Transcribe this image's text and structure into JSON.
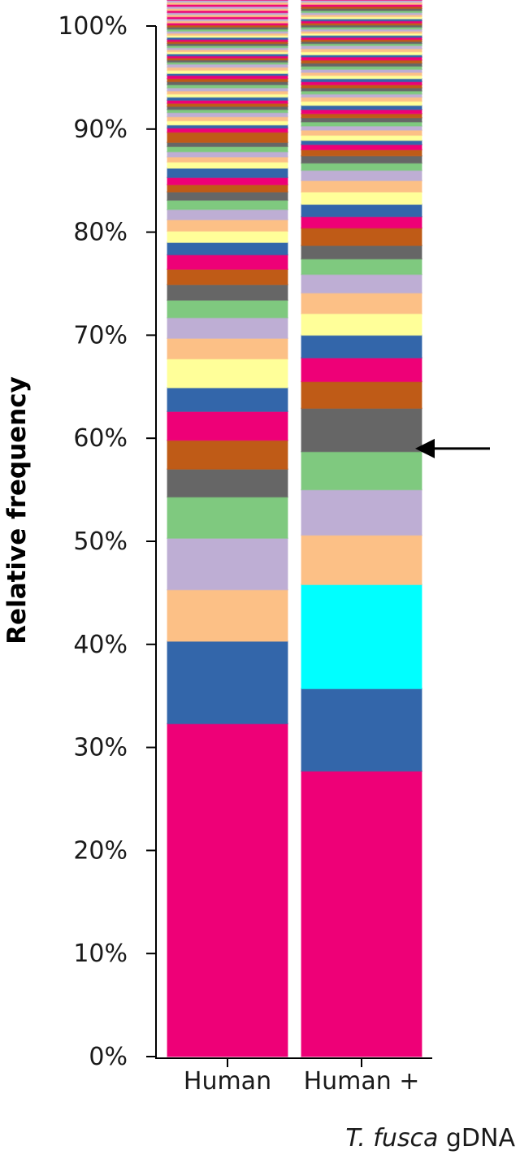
{
  "chart_data": {
    "type": "bar",
    "stacked": true,
    "ylabel": "Relative frequency",
    "ylim": [
      0,
      100
    ],
    "yticks": [
      "0%",
      "10%",
      "20%",
      "30%",
      "40%",
      "50%",
      "60%",
      "70%",
      "80%",
      "90%",
      "100%"
    ],
    "categories": [
      "Human",
      "Human +"
    ],
    "category_caption": {
      "italic": "T. fusca",
      "plain": " gDNA"
    },
    "annotation": {
      "type": "arrow",
      "points_to": "Human +",
      "at_value": 59
    },
    "colors": {
      "magenta": "#ee0077",
      "blue": "#3366aa",
      "cyan": "#00ffff",
      "peach": "#fcc086",
      "lavender": "#beaed4",
      "green": "#7fc97f",
      "gray": "#666666",
      "rust": "#bf5b17",
      "yellow": "#ffff99"
    },
    "stacks": [
      {
        "category": "Human",
        "segments": [
          {
            "color": "magenta",
            "value": 32.3
          },
          {
            "color": "blue",
            "value": 8.0
          },
          {
            "color": "peach",
            "value": 5.0
          },
          {
            "color": "lavender",
            "value": 5.0
          },
          {
            "color": "green",
            "value": 4.0
          },
          {
            "color": "gray",
            "value": 2.7
          },
          {
            "color": "rust",
            "value": 2.8
          },
          {
            "color": "magenta",
            "value": 2.8
          },
          {
            "color": "blue",
            "value": 2.3
          },
          {
            "color": "yellow",
            "value": 2.8
          },
          {
            "color": "peach",
            "value": 2.0
          },
          {
            "color": "lavender",
            "value": 2.0
          },
          {
            "color": "green",
            "value": 1.7
          },
          {
            "color": "gray",
            "value": 1.5
          },
          {
            "color": "rust",
            "value": 1.5
          },
          {
            "color": "magenta",
            "value": 1.4
          },
          {
            "color": "blue",
            "value": 1.2
          },
          {
            "color": "yellow",
            "value": 1.1
          },
          {
            "color": "peach",
            "value": 1.1
          },
          {
            "color": "lavender",
            "value": 1.0
          },
          {
            "color": "green",
            "value": 0.9
          },
          {
            "color": "gray",
            "value": 0.8
          },
          {
            "color": "rust",
            "value": 0.7
          },
          {
            "color": "magenta",
            "value": 0.7
          },
          {
            "color": "blue",
            "value": 0.9
          },
          {
            "color": "yellow",
            "value": 0.6
          },
          {
            "color": "peach",
            "value": 0.5
          },
          {
            "color": "lavender",
            "value": 0.5
          },
          {
            "color": "green",
            "value": 0.5
          },
          {
            "color": "gray",
            "value": 0.4
          },
          {
            "color": "rust",
            "value": 1.0
          },
          {
            "color": "magenta",
            "value": 0.4
          },
          {
            "color": "blue",
            "value": 0.3
          },
          {
            "color": "yellow",
            "value": 0.4
          },
          {
            "color": "peach",
            "value": 0.4
          },
          {
            "color": "lavender",
            "value": 0.4
          },
          {
            "color": "green",
            "value": 0.3
          },
          {
            "color": "gray",
            "value": 0.3
          },
          {
            "color": "rust",
            "value": 0.3
          },
          {
            "color": "magenta",
            "value": 0.3
          },
          {
            "color": "blue",
            "value": 0.3
          },
          {
            "color": "yellow",
            "value": 0.3
          },
          {
            "color": "peach",
            "value": 0.3
          },
          {
            "color": "lavender",
            "value": 0.3
          },
          {
            "color": "green",
            "value": 0.3
          },
          {
            "color": "gray",
            "value": 0.3
          },
          {
            "color": "rust",
            "value": 0.3
          },
          {
            "color": "magenta",
            "value": 0.3
          },
          {
            "color": "blue",
            "value": 0.2
          },
          {
            "color": "yellow",
            "value": 0.3
          },
          {
            "color": "peach",
            "value": 0.3
          },
          {
            "color": "lavender",
            "value": 0.3
          },
          {
            "color": "green",
            "value": 0.2
          },
          {
            "color": "gray",
            "value": 0.2
          },
          {
            "color": "rust",
            "value": 0.2
          },
          {
            "color": "magenta",
            "value": 0.2
          },
          {
            "color": "blue",
            "value": 0.2
          },
          {
            "color": "yellow",
            "value": 0.2
          },
          {
            "color": "peach",
            "value": 0.2
          },
          {
            "color": "lavender",
            "value": 0.2
          },
          {
            "color": "green",
            "value": 0.2
          },
          {
            "color": "gray",
            "value": 0.2
          },
          {
            "color": "rust",
            "value": 0.2
          },
          {
            "color": "magenta",
            "value": 0.2
          },
          {
            "color": "blue",
            "value": 0.2
          },
          {
            "color": "yellow",
            "value": 0.2
          },
          {
            "color": "peach",
            "value": 0.2
          },
          {
            "color": "lavender",
            "value": 0.2
          },
          {
            "color": "green",
            "value": 0.2
          },
          {
            "color": "gray",
            "value": 0.2
          },
          {
            "color": "rust",
            "value": 0.2
          },
          {
            "color": "magenta",
            "value": 0.2
          },
          {
            "color": "peach",
            "value": 0.2
          },
          {
            "color": "lavender",
            "value": 0.2
          },
          {
            "color": "magenta",
            "value": 0.2
          },
          {
            "color": "peach",
            "value": 0.2
          },
          {
            "color": "lavender",
            "value": 0.2
          },
          {
            "color": "magenta",
            "value": 0.2
          },
          {
            "color": "peach",
            "value": 0.2
          },
          {
            "color": "lavender",
            "value": 0.2
          },
          {
            "color": "magenta",
            "value": 0.2
          },
          {
            "color": "peach",
            "value": 0.2
          },
          {
            "color": "lavender",
            "value": 0.2
          },
          {
            "color": "magenta",
            "value": 0.2
          },
          {
            "color": "peach",
            "value": 0.2
          },
          {
            "color": "lavender",
            "value": 0.2
          },
          {
            "color": "magenta",
            "value": 0.2
          },
          {
            "color": "peach",
            "value": 0.2
          },
          {
            "color": "lavender",
            "value": 0.2
          },
          {
            "color": "magenta",
            "value": 0.2
          },
          {
            "color": "peach",
            "value": 0.2
          },
          {
            "color": "lavender",
            "value": 0.2
          },
          {
            "color": "peach",
            "value": 0.2
          }
        ]
      },
      {
        "category": "Human +",
        "segments": [
          {
            "color": "magenta",
            "value": 27.7
          },
          {
            "color": "blue",
            "value": 8.0
          },
          {
            "color": "cyan",
            "value": 10.1
          },
          {
            "color": "peach",
            "value": 4.8
          },
          {
            "color": "lavender",
            "value": 4.4
          },
          {
            "color": "green",
            "value": 3.7
          },
          {
            "color": "gray",
            "value": 4.2
          },
          {
            "color": "rust",
            "value": 2.6
          },
          {
            "color": "magenta",
            "value": 2.3
          },
          {
            "color": "blue",
            "value": 2.2
          },
          {
            "color": "yellow",
            "value": 2.1
          },
          {
            "color": "peach",
            "value": 2.0
          },
          {
            "color": "lavender",
            "value": 1.8
          },
          {
            "color": "green",
            "value": 1.5
          },
          {
            "color": "gray",
            "value": 1.3
          },
          {
            "color": "rust",
            "value": 1.7
          },
          {
            "color": "magenta",
            "value": 1.1
          },
          {
            "color": "blue",
            "value": 1.2
          },
          {
            "color": "yellow",
            "value": 1.2
          },
          {
            "color": "peach",
            "value": 1.1
          },
          {
            "color": "lavender",
            "value": 1.0
          },
          {
            "color": "green",
            "value": 0.7
          },
          {
            "color": "gray",
            "value": 0.7
          },
          {
            "color": "rust",
            "value": 0.6
          },
          {
            "color": "magenta",
            "value": 0.5
          },
          {
            "color": "blue",
            "value": 0.4
          },
          {
            "color": "yellow",
            "value": 0.5
          },
          {
            "color": "peach",
            "value": 0.5
          },
          {
            "color": "lavender",
            "value": 0.4
          },
          {
            "color": "green",
            "value": 0.4
          },
          {
            "color": "gray",
            "value": 0.4
          },
          {
            "color": "rust",
            "value": 0.4
          },
          {
            "color": "magenta",
            "value": 0.4
          },
          {
            "color": "blue",
            "value": 0.4
          },
          {
            "color": "yellow",
            "value": 0.4
          },
          {
            "color": "peach",
            "value": 0.4
          },
          {
            "color": "lavender",
            "value": 0.3
          },
          {
            "color": "green",
            "value": 0.3
          },
          {
            "color": "gray",
            "value": 0.3
          },
          {
            "color": "rust",
            "value": 0.3
          },
          {
            "color": "magenta",
            "value": 0.3
          },
          {
            "color": "blue",
            "value": 0.3
          },
          {
            "color": "yellow",
            "value": 0.3
          },
          {
            "color": "peach",
            "value": 0.3
          },
          {
            "color": "lavender",
            "value": 0.3
          },
          {
            "color": "green",
            "value": 0.3
          },
          {
            "color": "gray",
            "value": 0.3
          },
          {
            "color": "rust",
            "value": 0.3
          },
          {
            "color": "magenta",
            "value": 0.3
          },
          {
            "color": "blue",
            "value": 0.2
          },
          {
            "color": "yellow",
            "value": 0.3
          },
          {
            "color": "peach",
            "value": 0.3
          },
          {
            "color": "lavender",
            "value": 0.3
          },
          {
            "color": "green",
            "value": 0.2
          },
          {
            "color": "gray",
            "value": 0.2
          },
          {
            "color": "rust",
            "value": 0.2
          },
          {
            "color": "magenta",
            "value": 0.2
          },
          {
            "color": "blue",
            "value": 0.2
          },
          {
            "color": "yellow",
            "value": 0.2
          },
          {
            "color": "peach",
            "value": 0.2
          },
          {
            "color": "lavender",
            "value": 0.2
          },
          {
            "color": "green",
            "value": 0.2
          },
          {
            "color": "gray",
            "value": 0.2
          },
          {
            "color": "rust",
            "value": 0.2
          },
          {
            "color": "magenta",
            "value": 0.2
          },
          {
            "color": "blue",
            "value": 0.2
          },
          {
            "color": "yellow",
            "value": 0.2
          },
          {
            "color": "peach",
            "value": 0.2
          },
          {
            "color": "lavender",
            "value": 0.2
          },
          {
            "color": "green",
            "value": 0.2
          },
          {
            "color": "gray",
            "value": 0.2
          },
          {
            "color": "rust",
            "value": 0.2
          },
          {
            "color": "magenta",
            "value": 0.2
          },
          {
            "color": "peach",
            "value": 0.2
          },
          {
            "color": "lavender",
            "value": 0.2
          },
          {
            "color": "magenta",
            "value": 0.2
          },
          {
            "color": "peach",
            "value": 0.2
          },
          {
            "color": "lavender",
            "value": 0.2
          },
          {
            "color": "magenta",
            "value": 0.2
          },
          {
            "color": "peach",
            "value": 0.2
          },
          {
            "color": "lavender",
            "value": 0.2
          },
          {
            "color": "magenta",
            "value": 0.2
          },
          {
            "color": "peach",
            "value": 0.2
          },
          {
            "color": "lavender",
            "value": 0.2
          },
          {
            "color": "magenta",
            "value": 0.2
          },
          {
            "color": "peach",
            "value": 0.2
          },
          {
            "color": "lavender",
            "value": 0.2
          },
          {
            "color": "peach",
            "value": 0.2
          }
        ]
      }
    ]
  }
}
